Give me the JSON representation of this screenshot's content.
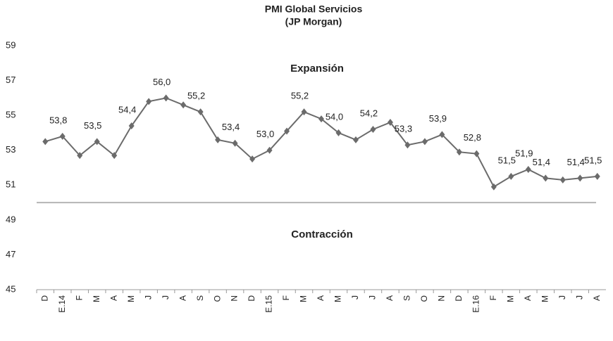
{
  "chart_data": {
    "type": "line",
    "title": "PMI Global Servicios",
    "subtitle": "(JP Morgan)",
    "annotations": [
      "Expansión",
      "Contracción"
    ],
    "categories": [
      "D",
      "E.14",
      "F",
      "M",
      "A",
      "M",
      "J",
      "J",
      "A",
      "S",
      "O",
      "N",
      "D",
      "E.15",
      "F",
      "M",
      "A",
      "M",
      "J",
      "J",
      "A",
      "S",
      "O",
      "N",
      "D",
      "E.16",
      "F",
      "M",
      "A",
      "M",
      "J",
      "J",
      "A"
    ],
    "series": [
      {
        "color": "#6b6b6b",
        "values": [
          53.5,
          53.8,
          52.7,
          53.5,
          52.7,
          54.4,
          55.8,
          56.0,
          55.6,
          55.2,
          53.6,
          53.4,
          52.5,
          53.0,
          54.1,
          55.2,
          54.8,
          54.0,
          53.6,
          54.2,
          54.6,
          53.3,
          53.5,
          53.9,
          52.9,
          52.8,
          50.9,
          51.5,
          51.9,
          51.4,
          51.3,
          51.4,
          51.5
        ],
        "value_labels": [
          null,
          "53,8",
          null,
          "53,5",
          null,
          "54,4",
          null,
          "56,0",
          null,
          "55,2",
          null,
          "53,4",
          null,
          "53,0",
          null,
          "55,2",
          null,
          "54,0",
          null,
          "54,2",
          null,
          "53,3",
          null,
          "53,9",
          null,
          "52,8",
          null,
          "51,5",
          "51,9",
          "51,4",
          null,
          "51,4",
          "51,5"
        ]
      }
    ],
    "ylim": [
      45,
      59
    ],
    "yticks": [
      45,
      47,
      49,
      51,
      53,
      55,
      57,
      59
    ],
    "reference_line": 50,
    "reference_color": "#b5b5b5"
  }
}
